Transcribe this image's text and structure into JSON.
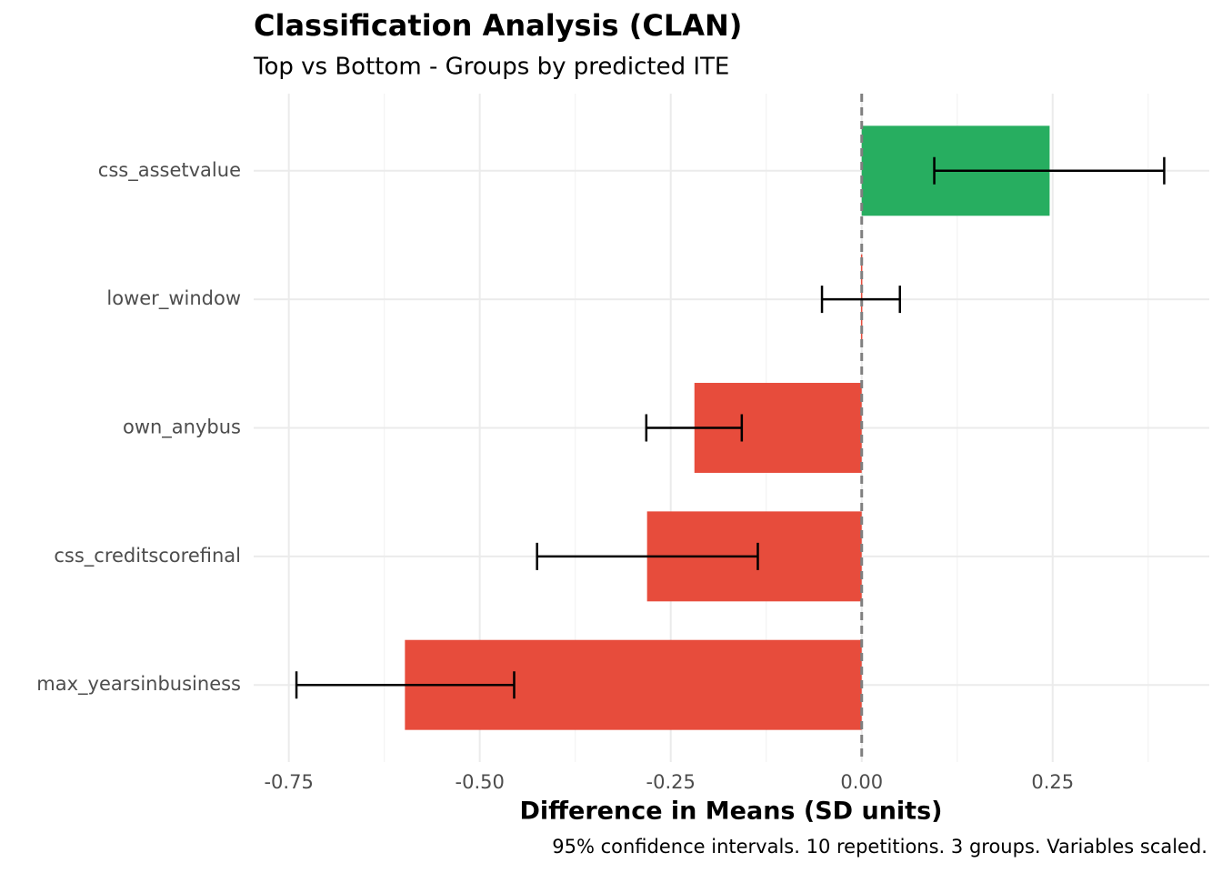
{
  "chart_data": {
    "type": "bar",
    "orientation": "horizontal",
    "title": "Classification Analysis (CLAN)",
    "subtitle": "Top vs Bottom - Groups by predicted ITE",
    "x_label": "Difference in Means (SD units)",
    "caption": "95% confidence intervals. 10 repetitions. 3 groups. Variables scaled.",
    "categories": [
      "css_assetvalue",
      "lower_window",
      "own_anybus",
      "css_creditscorefinal",
      "max_yearsinbusiness"
    ],
    "values": [
      0.246,
      -0.001,
      -0.219,
      -0.281,
      -0.598
    ],
    "ci_lower": [
      0.095,
      -0.052,
      -0.282,
      -0.425,
      -0.74
    ],
    "ci_upper": [
      0.396,
      0.05,
      -0.157,
      -0.136,
      -0.455
    ],
    "colors": [
      "#27ae60",
      "#e74c3c",
      "#e74c3c",
      "#e74c3c",
      "#e74c3c"
    ],
    "xlim": [
      -0.796,
      0.455
    ],
    "xticks": [
      -0.75,
      {
        "value": -0.5,
        "label": "-0.50"
      },
      -0.25,
      {
        "value": 0,
        "label": "0.00"
      },
      0.25
    ],
    "xminorticks": [
      -0.625,
      -0.375,
      -0.125,
      0.125,
      0.375
    ],
    "reference_line": 0,
    "grid": true
  }
}
